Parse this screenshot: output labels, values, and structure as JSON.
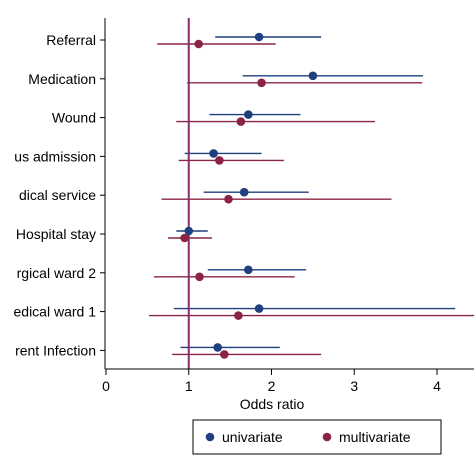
{
  "chart_data": {
    "type": "scatter",
    "subtype": "forest-plot",
    "title": "",
    "xlabel": "Odds ratio",
    "ylabel": "",
    "xlim": [
      0,
      4.4
    ],
    "xticks": [
      0,
      1,
      2,
      3,
      4
    ],
    "reference_line": 1,
    "grid": false,
    "legend_position": "bottom",
    "categories": [
      "Referral",
      "Medication",
      "Wound",
      "us admission",
      "dical service",
      "Hospital stay",
      "rgical ward 2",
      "edical ward 1",
      "rent Infection"
    ],
    "series": [
      {
        "name": "univariate",
        "color": "#1f3f7f",
        "estimate": [
          1.85,
          2.5,
          1.72,
          1.3,
          1.67,
          1.0,
          1.72,
          1.85,
          1.35
        ],
        "lower": [
          1.32,
          1.65,
          1.25,
          0.95,
          1.18,
          0.85,
          1.23,
          0.82,
          0.9
        ],
        "upper": [
          2.6,
          3.83,
          2.35,
          1.88,
          2.45,
          1.23,
          2.42,
          4.22,
          2.1
        ]
      },
      {
        "name": "multivariate",
        "color": "#8b2443",
        "estimate": [
          1.12,
          1.88,
          1.63,
          1.37,
          1.48,
          0.95,
          1.13,
          1.6,
          1.43
        ],
        "lower": [
          0.62,
          0.98,
          0.85,
          0.88,
          0.67,
          0.75,
          0.58,
          0.52,
          0.8
        ],
        "upper": [
          2.05,
          3.82,
          3.25,
          2.15,
          3.45,
          1.28,
          2.28,
          4.8,
          2.6
        ]
      }
    ]
  }
}
